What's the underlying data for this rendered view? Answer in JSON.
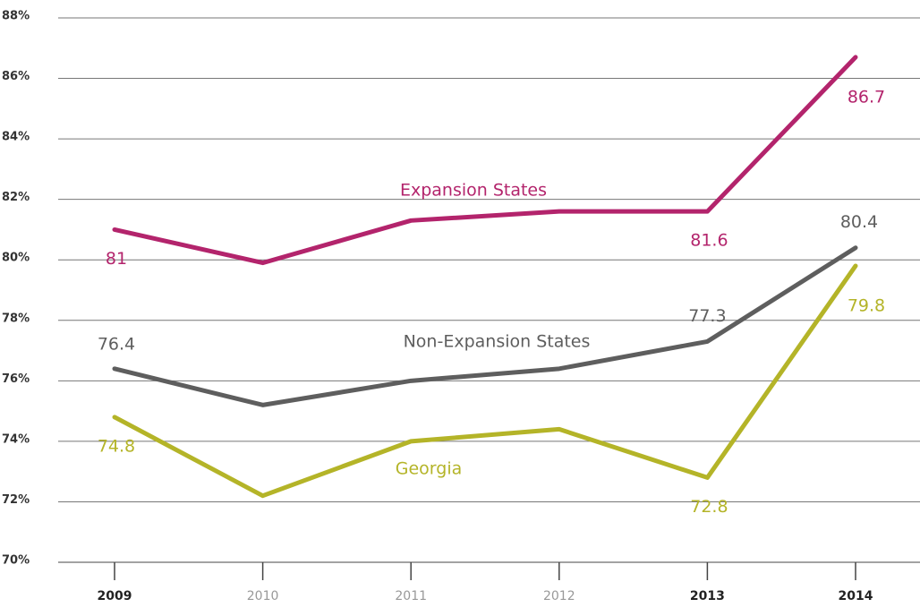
{
  "chart_data": {
    "type": "line",
    "categories": [
      "2009",
      "2010",
      "2011",
      "2012",
      "2013",
      "2014"
    ],
    "series": [
      {
        "name": "Expansion States",
        "color": "#b3246c",
        "values": [
          81,
          79.9,
          81.3,
          81.6,
          81.6,
          86.7
        ]
      },
      {
        "name": "Non-Expansion States",
        "color": "#5e5e5e",
        "values": [
          76.4,
          75.2,
          76.0,
          76.4,
          77.3,
          80.4
        ]
      },
      {
        "name": "Georgia",
        "color": "#b4b428",
        "values": [
          74.8,
          72.2,
          74.0,
          74.4,
          72.8,
          79.8
        ]
      }
    ],
    "ylim": [
      70,
      88
    ],
    "yticks": [
      {
        "value": 70,
        "label": "70%"
      },
      {
        "value": 72,
        "label": "72%"
      },
      {
        "value": 74,
        "label": "74%"
      },
      {
        "value": 76,
        "label": "76%"
      },
      {
        "value": 78,
        "label": "78%"
      },
      {
        "value": 80,
        "label": "80%"
      },
      {
        "value": 82,
        "label": "82%"
      },
      {
        "value": 84,
        "label": "84%"
      },
      {
        "value": 86,
        "label": "86%"
      },
      {
        "value": 88,
        "label": "88%"
      }
    ],
    "grid": true
  }
}
